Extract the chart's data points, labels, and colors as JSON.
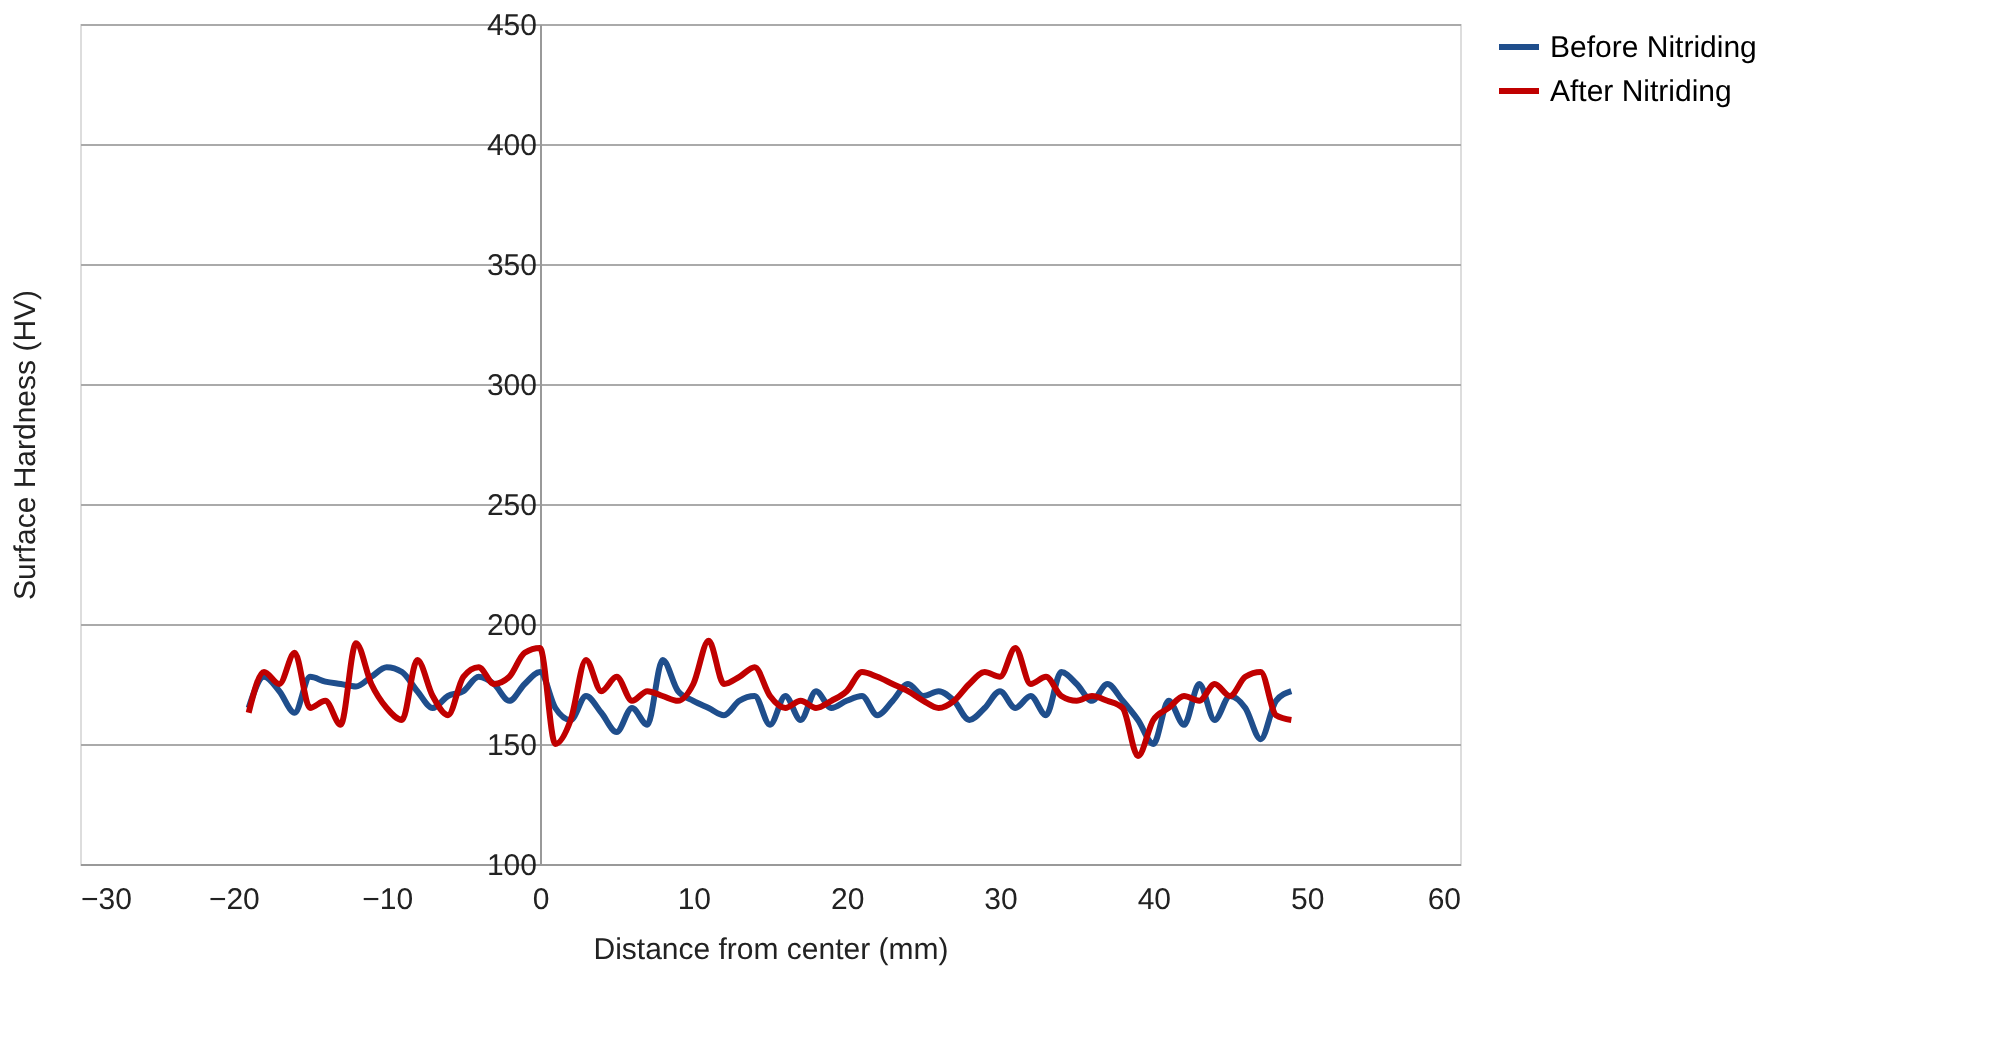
{
  "chart_data": {
    "type": "line",
    "xlabel": "Distance from center (mm)",
    "ylabel": "Surface Hardness (HV)",
    "x": [
      -19,
      -18,
      -17,
      -16,
      -15,
      -14,
      -13,
      -12,
      -11,
      -10,
      -9,
      -8,
      -7,
      -6,
      -5,
      -4,
      -3,
      -2,
      -1,
      0,
      1,
      2,
      3,
      4,
      5,
      6,
      7,
      8,
      9,
      10,
      11,
      12,
      13,
      14,
      15,
      16,
      17,
      18,
      19,
      20,
      21,
      22,
      23,
      24,
      25,
      26,
      27,
      28,
      29,
      30,
      31,
      32,
      33,
      34,
      35,
      36,
      37,
      38,
      39,
      40,
      41,
      42,
      43,
      44,
      45,
      46,
      47,
      48,
      49
    ],
    "series": [
      {
        "name": "Before Nitriding",
        "color": "#1f4e8c",
        "values": [
          165,
          178,
          172,
          163,
          178,
          176,
          175,
          174,
          178,
          182,
          180,
          172,
          165,
          170,
          172,
          178,
          175,
          168,
          175,
          180,
          165,
          160,
          170,
          163,
          155,
          165,
          158,
          185,
          172,
          168,
          165,
          162,
          168,
          170,
          158,
          170,
          160,
          172,
          165,
          168,
          170,
          162,
          168,
          175,
          170,
          172,
          168,
          160,
          165,
          172,
          165,
          170,
          162,
          180,
          175,
          168,
          175,
          168,
          160,
          150,
          168,
          158,
          175,
          160,
          170,
          165,
          152,
          168,
          172
        ]
      },
      {
        "name": "After Nitriding",
        "color": "#c00000",
        "values": [
          163,
          180,
          175,
          188,
          165,
          168,
          158,
          192,
          175,
          165,
          160,
          185,
          170,
          162,
          178,
          182,
          175,
          178,
          188,
          190,
          150,
          160,
          185,
          172,
          178,
          168,
          172,
          170,
          168,
          175,
          193,
          175,
          178,
          182,
          170,
          165,
          168,
          165,
          168,
          172,
          180,
          178,
          175,
          172,
          168,
          165,
          168,
          175,
          180,
          178,
          190,
          175,
          178,
          170,
          168,
          170,
          168,
          165,
          145,
          160,
          165,
          170,
          168,
          175,
          170,
          178,
          180,
          162,
          160
        ]
      }
    ],
    "xlim": [
      -30,
      60
    ],
    "xticks": [
      -30,
      -20,
      -10,
      0,
      10,
      20,
      30,
      40,
      50,
      60
    ],
    "ylim": [
      100,
      450
    ],
    "yticks": [
      100,
      150,
      200,
      250,
      300,
      350,
      400,
      450
    ],
    "grid": "y",
    "legend": "right",
    "marker": "none",
    "line_style": "solid"
  }
}
